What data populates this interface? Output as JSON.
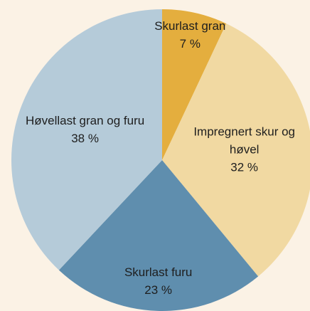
{
  "chart_data": {
    "type": "pie",
    "categories": [
      "Skurlast gran",
      "Impregnert skur og høvel",
      "Skurlast furu",
      "Høvellast gran og furu"
    ],
    "values": [
      7,
      32,
      23,
      38
    ],
    "value_labels": [
      "7 %",
      "32 %",
      "23 %",
      "38 %"
    ],
    "colors": [
      "#e4ae3e",
      "#f1d9a2",
      "#5f8eae",
      "#b5cbd9"
    ]
  }
}
